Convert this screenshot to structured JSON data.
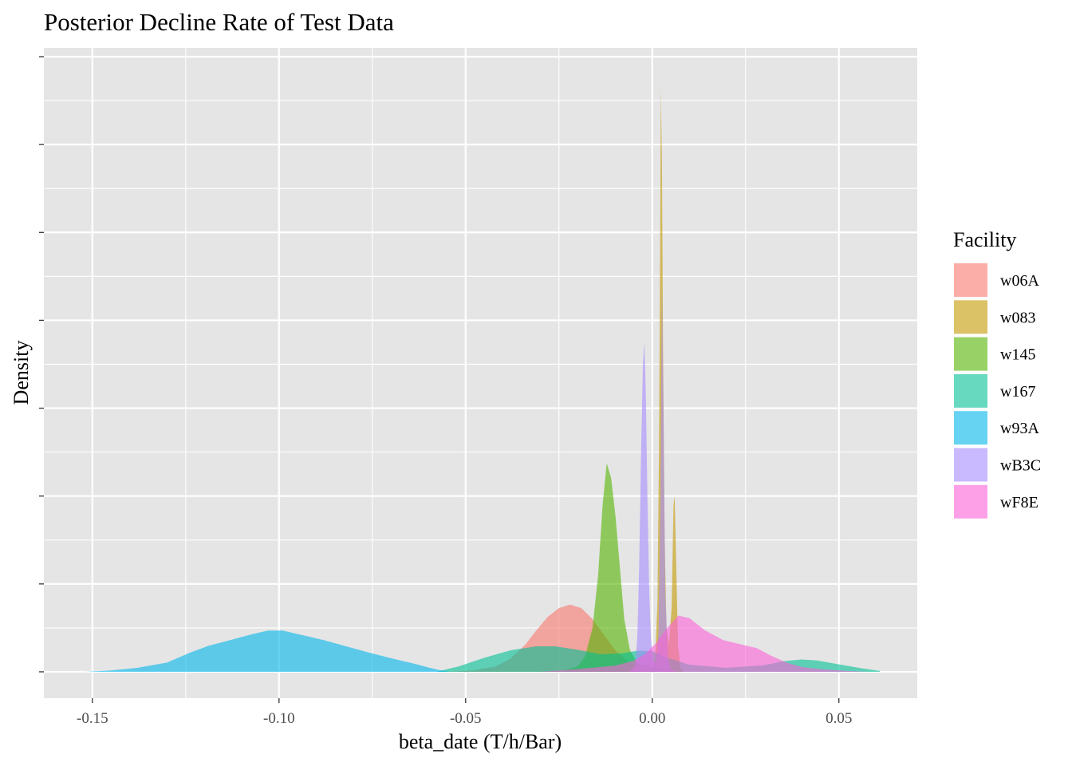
{
  "chart_data": {
    "type": "area",
    "title": "Posterior Decline Rate of Test Data",
    "xlabel": "beta_date (T/h/Bar)",
    "ylabel": "Density",
    "xlim": [
      -0.163,
      0.071
    ],
    "ylim": [
      -6,
      142
    ],
    "x_ticks": [
      -0.15,
      -0.1,
      -0.05,
      0.0,
      0.05
    ],
    "x_tick_labels": [
      "-0.15",
      "-0.10",
      "-0.05",
      "0.00",
      "0.05"
    ],
    "y_ticks": [
      0,
      20,
      40,
      60,
      80,
      100,
      120,
      140
    ],
    "y_tick_labels": [
      "",
      "",
      "",
      "",
      "",
      "",
      "",
      ""
    ],
    "grid": true,
    "background": "#e5e5e5",
    "legend": {
      "title": "Facility",
      "placement": "right"
    },
    "fill_opacity": 0.6,
    "series": [
      {
        "name": "w06A",
        "color": "#F8766D",
        "points": [
          [
            -0.056,
            0
          ],
          [
            -0.048,
            0.3
          ],
          [
            -0.042,
            1.2
          ],
          [
            -0.038,
            3
          ],
          [
            -0.034,
            6.2
          ],
          [
            -0.031,
            9.5
          ],
          [
            -0.028,
            12.5
          ],
          [
            -0.025,
            14.5
          ],
          [
            -0.022,
            15.3
          ],
          [
            -0.019,
            14.5
          ],
          [
            -0.016,
            12
          ],
          [
            -0.013,
            8.5
          ],
          [
            -0.01,
            5
          ],
          [
            -0.007,
            2.7
          ],
          [
            -0.004,
            1.2
          ],
          [
            -0.001,
            0.5
          ],
          [
            0.004,
            0
          ]
        ]
      },
      {
        "name": "w083",
        "color": "#C49A00",
        "points": [
          [
            -0.004,
            0
          ],
          [
            0,
            0.3
          ],
          [
            0.0008,
            3
          ],
          [
            0.0014,
            16
          ],
          [
            0.0018,
            50
          ],
          [
            0.0021,
            95
          ],
          [
            0.0023,
            133
          ],
          [
            0.0026,
            116
          ],
          [
            0.0029,
            72
          ],
          [
            0.0033,
            32
          ],
          [
            0.0038,
            10
          ],
          [
            0.0045,
            6
          ],
          [
            0.0052,
            15
          ],
          [
            0.0057,
            38
          ],
          [
            0.006,
            40
          ],
          [
            0.0064,
            25
          ],
          [
            0.0069,
            6
          ],
          [
            0.0076,
            0.8
          ],
          [
            0.0085,
            0
          ]
        ]
      },
      {
        "name": "w145",
        "color": "#53B400",
        "points": [
          [
            -0.03,
            0
          ],
          [
            -0.024,
            0.3
          ],
          [
            -0.02,
            1.2
          ],
          [
            -0.018,
            3.5
          ],
          [
            -0.016,
            10
          ],
          [
            -0.0145,
            22
          ],
          [
            -0.0133,
            38
          ],
          [
            -0.0122,
            47.5
          ],
          [
            -0.011,
            44
          ],
          [
            -0.0098,
            35
          ],
          [
            -0.0087,
            24
          ],
          [
            -0.0075,
            12
          ],
          [
            -0.006,
            5
          ],
          [
            -0.004,
            2
          ],
          [
            -0.002,
            1.5
          ],
          [
            0.002,
            0.8
          ],
          [
            0.007,
            0
          ]
        ]
      },
      {
        "name": "w167",
        "color": "#00C094",
        "points": [
          [
            -0.058,
            0
          ],
          [
            -0.052,
            1.2
          ],
          [
            -0.045,
            3.2
          ],
          [
            -0.038,
            4.9
          ],
          [
            -0.031,
            5.8
          ],
          [
            -0.026,
            5.8
          ],
          [
            -0.02,
            5
          ],
          [
            -0.014,
            4
          ],
          [
            -0.008,
            4.2
          ],
          [
            -0.004,
            4.8
          ],
          [
            0.0,
            4.7
          ],
          [
            0.004,
            3.2
          ],
          [
            0.01,
            1.6
          ],
          [
            0.02,
            0.9
          ],
          [
            0.03,
            1.5
          ],
          [
            0.035,
            2.4
          ],
          [
            0.04,
            2.8
          ],
          [
            0.044,
            2.6
          ],
          [
            0.05,
            1.7
          ],
          [
            0.056,
            0.8
          ],
          [
            0.061,
            0.2
          ]
        ]
      },
      {
        "name": "w93A",
        "color": "#00B6EB",
        "points": [
          [
            -0.152,
            0
          ],
          [
            -0.145,
            0.3
          ],
          [
            -0.138,
            0.9
          ],
          [
            -0.13,
            2.1
          ],
          [
            -0.124,
            4.3
          ],
          [
            -0.119,
            5.9
          ],
          [
            -0.114,
            7
          ],
          [
            -0.108,
            8.4
          ],
          [
            -0.103,
            9.4
          ],
          [
            -0.099,
            9.4
          ],
          [
            -0.094,
            8.4
          ],
          [
            -0.088,
            7.2
          ],
          [
            -0.082,
            5.8
          ],
          [
            -0.076,
            4.4
          ],
          [
            -0.07,
            3.1
          ],
          [
            -0.064,
            1.9
          ],
          [
            -0.06,
            1.0
          ],
          [
            -0.057,
            0.4
          ],
          [
            -0.054,
            0
          ]
        ]
      },
      {
        "name": "wB3C",
        "color": "#A58AFF",
        "points": [
          [
            -0.006,
            0
          ],
          [
            -0.0045,
            1.5
          ],
          [
            -0.004,
            8
          ],
          [
            -0.0035,
            24
          ],
          [
            -0.003,
            50
          ],
          [
            -0.0025,
            70
          ],
          [
            -0.0021,
            75
          ],
          [
            -0.0017,
            62
          ],
          [
            -0.0013,
            40
          ],
          [
            -0.0008,
            18
          ],
          [
            -0.0003,
            7
          ],
          [
            0.0003,
            2.5
          ],
          [
            0.001,
            2
          ],
          [
            0.0017,
            9
          ],
          [
            0.0022,
            40
          ],
          [
            0.0026,
            88
          ],
          [
            0.003,
            60
          ],
          [
            0.0035,
            18
          ],
          [
            0.0042,
            3
          ],
          [
            0.005,
            0.5
          ],
          [
            0.0065,
            0
          ]
        ]
      },
      {
        "name": "wF8E",
        "color": "#FB61D7",
        "points": [
          [
            -0.03,
            0
          ],
          [
            -0.02,
            0.6
          ],
          [
            -0.01,
            1.4
          ],
          [
            -0.005,
            2.5
          ],
          [
            -0.002,
            4
          ],
          [
            0.001,
            6.5
          ],
          [
            0.004,
            10
          ],
          [
            0.007,
            12.8
          ],
          [
            0.01,
            12.2
          ],
          [
            0.014,
            9.5
          ],
          [
            0.019,
            7.2
          ],
          [
            0.024,
            6.2
          ],
          [
            0.028,
            5.4
          ],
          [
            0.032,
            3.6
          ],
          [
            0.036,
            2.1
          ],
          [
            0.04,
            1.1
          ],
          [
            0.045,
            0.6
          ],
          [
            0.052,
            0.2
          ],
          [
            0.058,
            0
          ]
        ]
      }
    ]
  }
}
